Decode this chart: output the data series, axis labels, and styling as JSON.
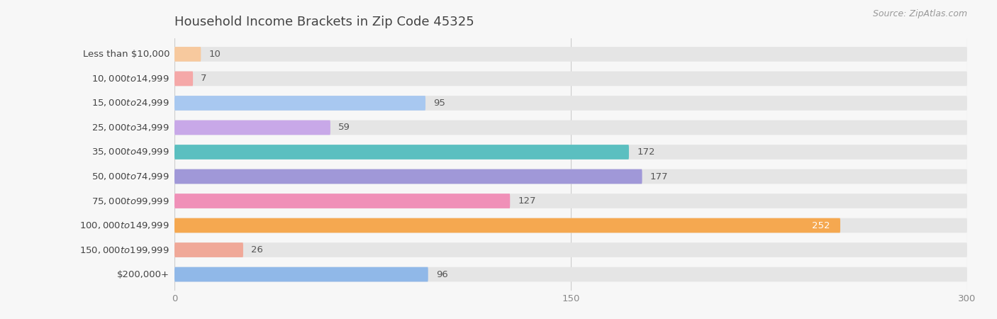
{
  "title": "Household Income Brackets in Zip Code 45325",
  "source": "Source: ZipAtlas.com",
  "categories": [
    "Less than $10,000",
    "$10,000 to $14,999",
    "$15,000 to $24,999",
    "$25,000 to $34,999",
    "$35,000 to $49,999",
    "$50,000 to $74,999",
    "$75,000 to $99,999",
    "$100,000 to $149,999",
    "$150,000 to $199,999",
    "$200,000+"
  ],
  "values": [
    10,
    7,
    95,
    59,
    172,
    177,
    127,
    252,
    26,
    96
  ],
  "colors": [
    "#F7C99E",
    "#F5A8A8",
    "#A8C8F0",
    "#C8A8E8",
    "#5BBFC0",
    "#A098D8",
    "#F090B8",
    "#F5A850",
    "#F0A898",
    "#90B8E8"
  ],
  "xlim": [
    0,
    300
  ],
  "xticks": [
    0,
    150,
    300
  ],
  "background_color": "#f7f7f7",
  "bar_bg_color": "#e5e5e5",
  "title_fontsize": 13,
  "label_fontsize": 9.5,
  "value_fontsize": 9.5,
  "source_fontsize": 9,
  "title_color": "#444444",
  "label_color": "#444444",
  "value_color_dark": "#555555",
  "value_color_light": "#ffffff",
  "tick_color": "#888888"
}
